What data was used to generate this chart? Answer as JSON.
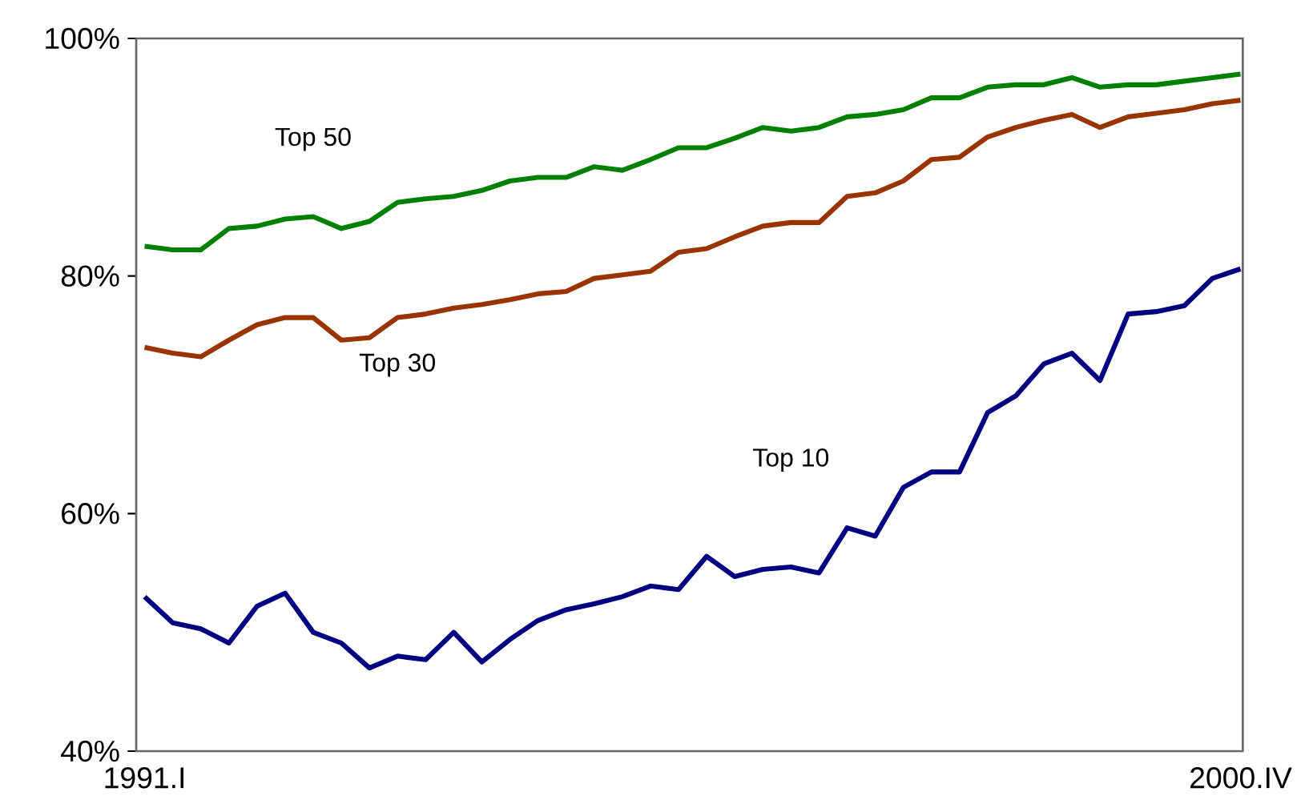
{
  "chart_data": {
    "type": "line",
    "categories": [
      "1991.I",
      null,
      null,
      null,
      null,
      null,
      null,
      null,
      null,
      null,
      null,
      null,
      null,
      null,
      null,
      null,
      null,
      null,
      null,
      null,
      null,
      null,
      null,
      null,
      null,
      null,
      null,
      null,
      null,
      null,
      null,
      null,
      null,
      null,
      null,
      null,
      null,
      null,
      null,
      "2000.IV"
    ],
    "series": [
      {
        "name": "Top 50",
        "color": "#008000",
        "values": [
          82.5,
          82.2,
          82.2,
          84,
          84.2,
          84.8,
          85,
          84,
          84.6,
          86.2,
          86.5,
          86.7,
          87.2,
          88,
          88.3,
          88.3,
          89.2,
          88.9,
          89.8,
          90.8,
          90.8,
          91.6,
          92.5,
          92.2,
          92.5,
          93.4,
          93.6,
          94,
          95,
          95,
          95.9,
          96.1,
          96.1,
          96.7,
          95.9,
          96.1,
          96.1,
          96.4,
          96.7,
          97.0
        ]
      },
      {
        "name": "Top 30",
        "color": "#993300",
        "values": [
          74,
          73.5,
          73.2,
          74.6,
          75.9,
          76.5,
          76.5,
          74.6,
          74.8,
          76.5,
          76.8,
          77.3,
          77.6,
          78,
          78.5,
          78.7,
          79.8,
          80.1,
          80.4,
          82,
          82.3,
          83.3,
          84.2,
          84.5,
          84.5,
          86.7,
          87,
          88,
          89.8,
          90,
          91.7,
          92.5,
          93.1,
          93.6,
          92.5,
          93.4,
          93.7,
          94,
          94.5,
          94.8
        ]
      },
      {
        "name": "Top 10",
        "color": "#000080",
        "values": [
          53,
          50.8,
          50.3,
          49.1,
          52.2,
          53.3,
          50,
          49.1,
          47,
          48,
          47.7,
          50,
          47.5,
          49.4,
          51,
          51.9,
          52.4,
          53,
          53.9,
          53.6,
          56.4,
          54.7,
          55.3,
          55.5,
          55,
          58.8,
          58.1,
          62.2,
          63.5,
          63.5,
          68.5,
          69.9,
          72.6,
          73.5,
          71.2,
          76.8,
          77,
          77.5,
          79.8,
          80.6
        ]
      }
    ],
    "ylim": [
      40,
      100
    ],
    "yticks": [
      {
        "value": 40,
        "label": "40%"
      },
      {
        "value": 60,
        "label": "60%"
      },
      {
        "value": 80,
        "label": "80%"
      },
      {
        "value": 100,
        "label": "100%"
      }
    ],
    "grid": false,
    "legend": false,
    "marker": "none",
    "line_style": "solid"
  }
}
